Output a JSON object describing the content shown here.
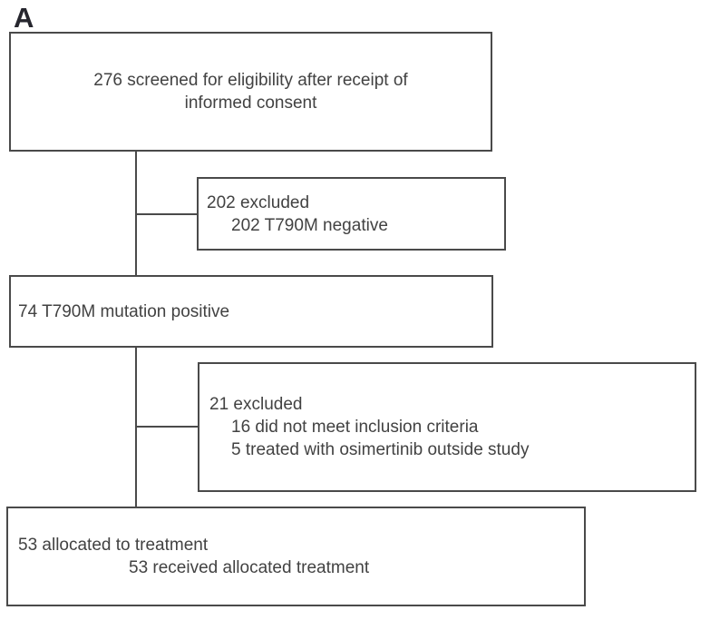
{
  "figure": {
    "panel_label": "A",
    "colors": {
      "border": "#4a4a4a",
      "text": "#424242",
      "label": "#26262e",
      "bg": "#ffffff"
    },
    "boxes": {
      "screened": {
        "line1": "276 screened for eligibility after receipt of",
        "line2": "informed consent"
      },
      "excluded1": {
        "line1": "202 excluded",
        "line2": "202 T790M negative"
      },
      "positive": {
        "line1": "74 T790M mutation positive"
      },
      "excluded2": {
        "line1": "21 excluded",
        "line2": "16 did not meet inclusion criteria",
        "line3": "5 treated with osimertinib outside study"
      },
      "allocated": {
        "line1": "53 allocated to treatment",
        "line2": "53 received allocated treatment"
      }
    }
  }
}
